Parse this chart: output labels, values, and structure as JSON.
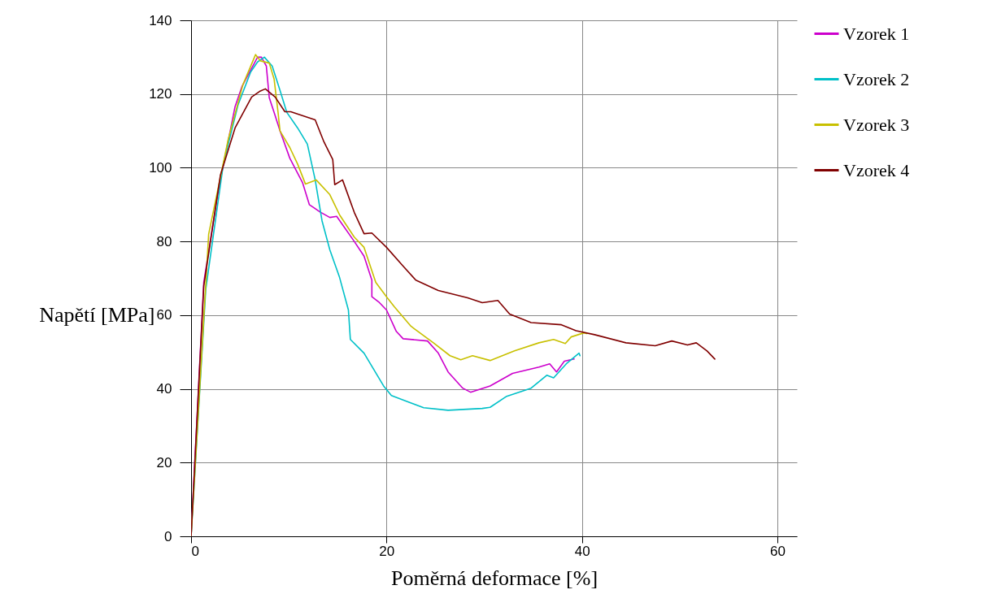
{
  "chart_data": {
    "type": "line",
    "xlabel": "Poměrná deformace [%]",
    "ylabel": "Napětí [MPa]",
    "xlim": [
      0,
      62
    ],
    "xticks": [
      0,
      20,
      40,
      60
    ],
    "ylim": [
      0,
      140
    ],
    "yticks": [
      0,
      20,
      40,
      60,
      80,
      100,
      120,
      140
    ],
    "grid": true,
    "legend": "right",
    "series": [
      {
        "name": "Vzorek 1",
        "color": "#cc00cc",
        "x": [
          0,
          1.3,
          2.8,
          4.5,
          5.2,
          6.8,
          7.2,
          7.7,
          8,
          8.5,
          9.1,
          10.1,
          11.4,
          12.1,
          13.2,
          14.2,
          14.9,
          16.7,
          17.7,
          18.5,
          18.5,
          19.2,
          20,
          21,
          21.7,
          24.2,
          25.3,
          26.3,
          27.8,
          28.6,
          30.6,
          32.9,
          35.6,
          36.7,
          37.4,
          38.2,
          39.2
        ],
        "values": [
          0,
          69,
          94,
          116.6,
          122,
          130,
          130,
          127.6,
          119,
          115,
          110,
          102.6,
          96,
          90,
          88,
          86.5,
          86.8,
          80,
          76,
          69.5,
          65,
          63.6,
          61.4,
          55.6,
          53.6,
          53,
          49.7,
          44.6,
          40.2,
          39.1,
          40.8,
          44.2,
          45.9,
          46.8,
          44.6,
          47.5,
          48.1
        ]
      },
      {
        "name": "Vzorek 2",
        "color": "#00c0c8",
        "x": [
          0,
          1.5,
          3.3,
          4.8,
          6.1,
          6.8,
          7.5,
          8.3,
          9.1,
          9.8,
          10.9,
          11.9,
          12.7,
          13.4,
          14.2,
          15.2,
          16.1,
          16.3,
          17.7,
          19.7,
          20.5,
          22.3,
          23.8,
          26.3,
          29.8,
          30.6,
          32.3,
          34.8,
          36.4,
          37.1,
          38.4,
          39.7,
          39.8
        ],
        "values": [
          0,
          67,
          101,
          117,
          126,
          128.7,
          130,
          127.6,
          121,
          115,
          110.8,
          106.4,
          96.7,
          85.6,
          77.7,
          70.2,
          61.4,
          53.4,
          49.7,
          40.8,
          38.2,
          36.4,
          34.9,
          34.2,
          34.7,
          35,
          38,
          40.2,
          43.7,
          43,
          46.8,
          49.7,
          49
        ]
      },
      {
        "name": "Vzorek 3",
        "color": "#c8c000",
        "x": [
          0,
          1.8,
          3.8,
          5.3,
          6.6,
          7.1,
          8,
          8.5,
          8.9,
          9.1,
          10.1,
          10.9,
          11.7,
          12.8,
          14.2,
          15.2,
          16.7,
          17.7,
          18.9,
          20,
          20.8,
          22.5,
          24.8,
          26.5,
          27.6,
          28.8,
          30.6,
          33.1,
          35.6,
          37.1,
          38.3,
          38.9,
          40.2,
          40.5
        ],
        "values": [
          0,
          82,
          107.7,
          122.5,
          130.7,
          129,
          128.4,
          124,
          115,
          110,
          105.5,
          101,
          95.6,
          96.7,
          92.7,
          87.2,
          81.2,
          78.4,
          68.9,
          65,
          62.3,
          57,
          52.5,
          49,
          47.9,
          49,
          47.7,
          50.3,
          52.5,
          53.4,
          52.3,
          54.1,
          55.2,
          55
        ]
      },
      {
        "name": "Vzorek 4",
        "color": "#800000",
        "x": [
          0,
          1.3,
          3,
          4.5,
          6.2,
          7,
          7.6,
          8.6,
          9.6,
          10.2,
          12.7,
          13.6,
          14.5,
          14.7,
          15.5,
          16.7,
          17.7,
          18.5,
          20,
          21.7,
          23,
          25.3,
          28.3,
          29.8,
          31.4,
          32.6,
          34.8,
          37.9,
          39.4,
          41.3,
          44.5,
          47.5,
          49.2,
          50.8,
          51.7,
          52.8,
          53.6
        ],
        "values": [
          0,
          68,
          98,
          110.8,
          119.2,
          120.7,
          121.4,
          119.2,
          115.2,
          115.2,
          113,
          107,
          102.2,
          95.4,
          96.7,
          87.9,
          82.1,
          82.3,
          78.4,
          73.3,
          69.5,
          66.7,
          64.7,
          63.4,
          64,
          60.3,
          58,
          57.4,
          55.8,
          54.7,
          52.5,
          51.7,
          53,
          51.9,
          52.5,
          50.3,
          48.1
        ]
      }
    ]
  }
}
